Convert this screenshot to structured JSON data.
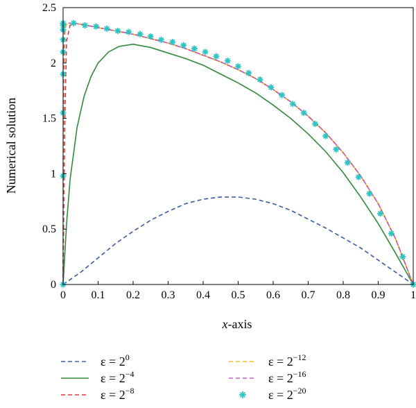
{
  "chart_data": {
    "type": "line",
    "title": "",
    "xlabel": {
      "var": "x",
      "rest": "-axis"
    },
    "ylabel": "Numerical solution",
    "xlim": [
      0,
      1
    ],
    "ylim": [
      0,
      2.5
    ],
    "xticks": [
      "0",
      "0.1",
      "0.2",
      "0.3",
      "0.4",
      "0.5",
      "0.6",
      "0.7",
      "0.8",
      "0.9",
      "1"
    ],
    "yticks": [
      "0",
      "0.5",
      "1",
      "1.5",
      "2",
      "2.5"
    ],
    "grid": false,
    "legend_position": "bottom",
    "series": [
      {
        "name": "ε = 2^0",
        "base": "ε = 2",
        "exp": "0",
        "color": "#3a5aa8",
        "style": "dashed",
        "x": [
          0,
          0.05,
          0.1,
          0.15,
          0.2,
          0.25,
          0.3,
          0.35,
          0.4,
          0.45,
          0.5,
          0.55,
          0.6,
          0.65,
          0.7,
          0.75,
          0.8,
          0.85,
          0.9,
          0.95,
          1
        ],
        "y": [
          0,
          0.11,
          0.24,
          0.37,
          0.48,
          0.58,
          0.66,
          0.73,
          0.77,
          0.79,
          0.79,
          0.77,
          0.73,
          0.67,
          0.59,
          0.51,
          0.42,
          0.33,
          0.22,
          0.11,
          0
        ]
      },
      {
        "name": "ε = 2^-4",
        "base": "ε = 2",
        "exp": "−4",
        "color": "#2e8b3a",
        "style": "solid",
        "x": [
          0,
          0.01,
          0.02,
          0.04,
          0.06,
          0.08,
          0.1,
          0.13,
          0.16,
          0.2,
          0.25,
          0.3,
          0.35,
          0.4,
          0.45,
          0.5,
          0.55,
          0.6,
          0.65,
          0.7,
          0.75,
          0.8,
          0.85,
          0.9,
          0.95,
          1
        ],
        "y": [
          0,
          0.55,
          0.95,
          1.42,
          1.7,
          1.88,
          2.0,
          2.1,
          2.15,
          2.17,
          2.14,
          2.09,
          2.04,
          1.98,
          1.9,
          1.82,
          1.73,
          1.62,
          1.5,
          1.36,
          1.2,
          1.01,
          0.79,
          0.55,
          0.28,
          0
        ]
      },
      {
        "name": "ε = 2^-8",
        "base": "ε = 2",
        "exp": "−8",
        "color": "#e03a3a",
        "style": "dashed",
        "x": [
          0,
          0.005,
          0.01,
          0.02,
          0.03,
          0.05,
          0.1,
          0.15,
          0.2,
          0.25,
          0.3,
          0.35,
          0.4,
          0.45,
          0.5,
          0.55,
          0.6,
          0.65,
          0.7,
          0.75,
          0.8,
          0.85,
          0.9,
          0.95,
          1
        ],
        "y": [
          0,
          1.5,
          2.2,
          2.34,
          2.36,
          2.35,
          2.32,
          2.29,
          2.26,
          2.22,
          2.18,
          2.13,
          2.07,
          2.01,
          1.94,
          1.86,
          1.76,
          1.65,
          1.52,
          1.37,
          1.19,
          0.98,
          0.73,
          0.41,
          0
        ]
      },
      {
        "name": "ε = 2^-12",
        "base": "ε = 2",
        "exp": "−12",
        "color": "#f2c21a",
        "style": "dashed",
        "x": [
          0,
          0.001,
          0.003,
          0.006,
          0.01,
          0.03,
          0.05,
          0.1,
          0.15,
          0.2,
          0.25,
          0.3,
          0.35,
          0.4,
          0.45,
          0.5,
          0.55,
          0.6,
          0.65,
          0.7,
          0.75,
          0.8,
          0.85,
          0.9,
          0.95,
          1
        ],
        "y": [
          0,
          1.0,
          1.9,
          2.3,
          2.35,
          2.36,
          2.35,
          2.32,
          2.29,
          2.26,
          2.22,
          2.18,
          2.13,
          2.07,
          2.01,
          1.94,
          1.86,
          1.76,
          1.65,
          1.52,
          1.37,
          1.19,
          0.98,
          0.73,
          0.41,
          0
        ]
      },
      {
        "name": "ε = 2^-16",
        "base": "ε = 2",
        "exp": "−16",
        "color": "#c060c0",
        "style": "dashed",
        "x": [
          0,
          0.0005,
          0.002,
          0.004,
          0.01,
          0.03,
          0.05,
          0.1,
          0.15,
          0.2,
          0.25,
          0.3,
          0.35,
          0.4,
          0.45,
          0.5,
          0.55,
          0.6,
          0.65,
          0.7,
          0.75,
          0.8,
          0.85,
          0.9,
          0.95,
          1
        ],
        "y": [
          0,
          1.2,
          2.1,
          2.33,
          2.36,
          2.36,
          2.35,
          2.32,
          2.29,
          2.26,
          2.22,
          2.18,
          2.13,
          2.07,
          2.01,
          1.94,
          1.86,
          1.76,
          1.65,
          1.52,
          1.37,
          1.19,
          0.98,
          0.73,
          0.41,
          0
        ]
      },
      {
        "name": "ε = 2^-20",
        "base": "ε = 2",
        "exp": "−20",
        "color": "#2ec4c4",
        "style": "markers",
        "x": [
          0,
          0,
          0,
          0,
          0,
          0,
          0,
          0,
          0,
          0.03,
          0.0625,
          0.094,
          0.125,
          0.156,
          0.1875,
          0.22,
          0.25,
          0.28,
          0.3125,
          0.344,
          0.375,
          0.406,
          0.4375,
          0.47,
          0.5,
          0.53,
          0.5625,
          0.594,
          0.625,
          0.656,
          0.6875,
          0.72,
          0.75,
          0.78,
          0.8125,
          0.844,
          0.875,
          0.906,
          0.9375,
          0.97,
          1
        ],
        "y": [
          0,
          0.98,
          1.55,
          1.9,
          2.1,
          2.21,
          2.3,
          2.34,
          2.36,
          2.36,
          2.34,
          2.33,
          2.31,
          2.29,
          2.28,
          2.26,
          2.24,
          2.21,
          2.19,
          2.16,
          2.13,
          2.1,
          2.06,
          2.02,
          1.97,
          1.91,
          1.85,
          1.78,
          1.71,
          1.63,
          1.55,
          1.45,
          1.34,
          1.22,
          1.1,
          0.97,
          0.82,
          0.64,
          0.46,
          0.25,
          0
        ]
      }
    ]
  }
}
